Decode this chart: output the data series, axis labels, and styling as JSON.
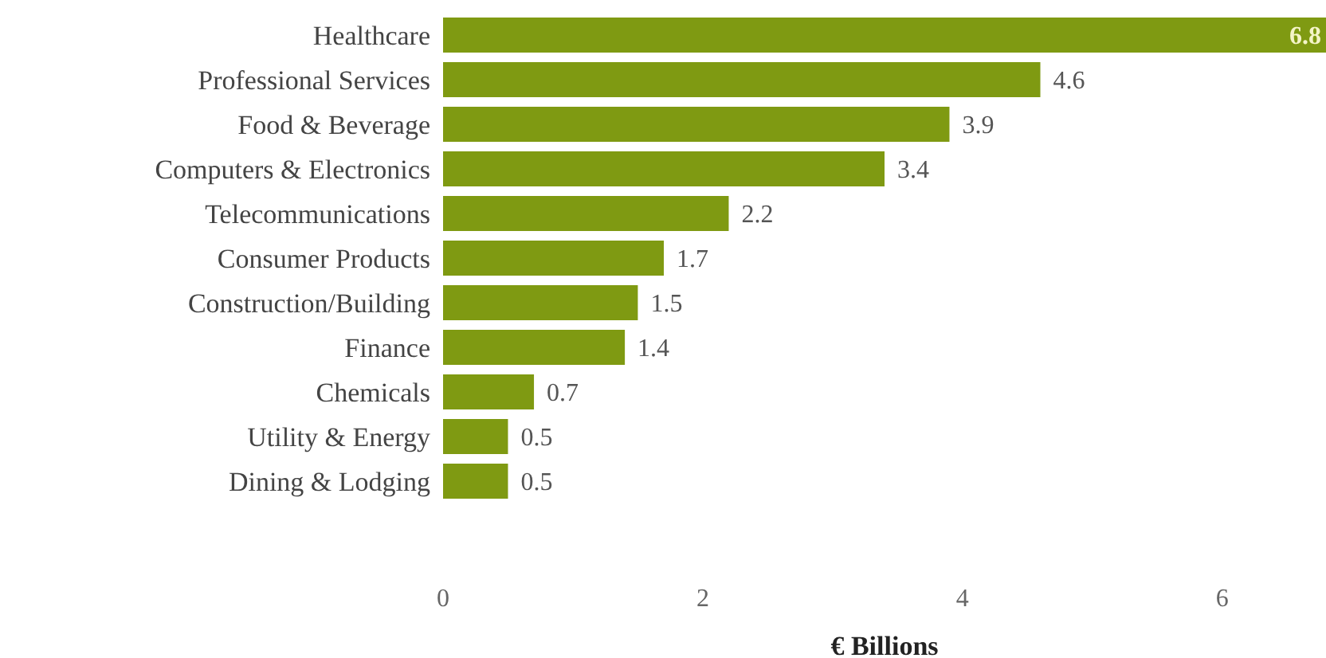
{
  "chart_data": {
    "type": "bar",
    "orientation": "horizontal",
    "xlabel": "€ Billions",
    "categories": [
      "Healthcare",
      "Professional Services",
      "Food & Beverage",
      "Computers & Electronics",
      "Telecommunications",
      "Consumer Products",
      "Construction/Building",
      "Finance",
      "Chemicals",
      "Utility & Energy",
      "Dining & Lodging"
    ],
    "values": [
      6.8,
      4.6,
      3.9,
      3.4,
      2.2,
      1.7,
      1.5,
      1.4,
      0.7,
      0.5,
      0.5
    ],
    "color": "#7f9a12",
    "xlim": [
      0,
      6.8
    ],
    "xticks": [
      0,
      2,
      4,
      6
    ],
    "data_labels": true,
    "grid": false,
    "legend": false
  }
}
